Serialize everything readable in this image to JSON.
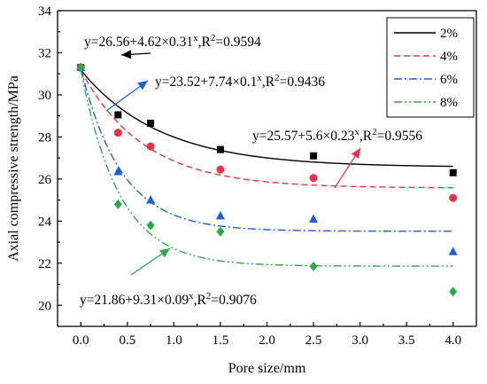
{
  "chart_data": {
    "type": "scatter",
    "xlabel": "Pore size/mm",
    "ylabel": "Axial compressive strength/MPa",
    "xlim": [
      -0.25,
      4.25
    ],
    "ylim": [
      19,
      34
    ],
    "xticks": [
      0.0,
      0.5,
      1.0,
      1.5,
      2.0,
      2.5,
      3.0,
      3.5,
      4.0
    ],
    "xtick_labels": [
      "0.0",
      "0.5",
      "1.0",
      "1.5",
      "2.0",
      "2.5",
      "3.0",
      "3.5",
      "4.0"
    ],
    "yticks": [
      20,
      22,
      24,
      26,
      28,
      30,
      32,
      34
    ],
    "ytick_labels": [
      "20",
      "22",
      "24",
      "26",
      "28",
      "30",
      "32",
      "34"
    ],
    "legend_position": "top-right",
    "x": [
      0,
      0.4,
      0.75,
      1.5,
      2.5,
      4.0
    ],
    "series": [
      {
        "name": "2%",
        "color": "#000000",
        "marker": "square",
        "line_style": "solid",
        "y": [
          31.3,
          29.05,
          28.65,
          27.4,
          27.1,
          26.3
        ],
        "fit": {
          "a": 26.56,
          "b": 4.62,
          "c": 0.31
        },
        "equation": {
          "base": "y=26.56+4.62×0.31",
          "exp": "x",
          "r2": "0.9594"
        }
      },
      {
        "name": "4%",
        "color": "#e8314a",
        "marker": "circle",
        "line_style": "dashed",
        "y": [
          31.3,
          28.2,
          27.55,
          26.45,
          26.05,
          25.1
        ],
        "fit": {
          "a": 25.57,
          "b": 5.6,
          "c": 0.23
        },
        "equation": {
          "base": "y=25.57+5.6×0.23",
          "exp": "x",
          "r2": "0.9556"
        }
      },
      {
        "name": "6%",
        "color": "#1f5fd6",
        "marker": "triangle",
        "line_style": "dashdot",
        "y": [
          31.3,
          26.35,
          25.0,
          24.25,
          24.1,
          22.55
        ],
        "fit": {
          "a": 23.52,
          "b": 7.74,
          "c": 0.1
        },
        "equation": {
          "base": "y=23.52+7.74×0.1",
          "exp": "x",
          "r2": "0.9436"
        }
      },
      {
        "name": "8%",
        "color": "#2ea84a",
        "marker": "diamond",
        "line_style": "dashdotdot",
        "y": [
          31.3,
          24.8,
          23.8,
          23.5,
          21.85,
          20.65
        ],
        "fit": {
          "a": 21.86,
          "b": 9.31,
          "c": 0.09
        },
        "equation": {
          "base": "y=21.86+9.31×0.09",
          "exp": "x",
          "r2": "0.9076"
        }
      }
    ]
  }
}
